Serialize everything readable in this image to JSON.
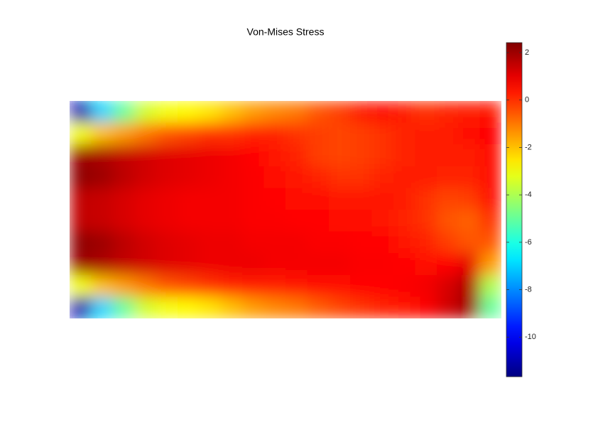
{
  "chart_data": {
    "type": "heatmap",
    "title": "Von-Mises Stress",
    "colormap": "jet",
    "values": [
      [
        -11,
        -7,
        -5,
        -3.5,
        -3,
        -2.8,
        -2.5,
        -2,
        -1.5,
        -1.2,
        -1,
        -0.5,
        -0.2,
        0.3,
        0.5,
        0.3,
        0,
        0.2,
        0.3,
        0.4
      ],
      [
        -3,
        -2,
        -1.5,
        -1,
        -0.5,
        -0.3,
        0,
        0,
        0.2,
        0.2,
        0,
        -0.2,
        -0.3,
        -0.2,
        0,
        0.2,
        0.3,
        0.3,
        0.5,
        0.6
      ],
      [
        2.0,
        1.8,
        1.5,
        1.3,
        1.1,
        1.0,
        0.9,
        0.8,
        0.6,
        0.4,
        0.2,
        -0.2,
        -0.3,
        -0.2,
        0,
        0.2,
        0.3,
        0.3,
        0.3,
        0.5
      ],
      [
        2.2,
        2.0,
        1.6,
        1.3,
        1.1,
        1.0,
        0.9,
        0.8,
        0.7,
        0.5,
        0.4,
        0.2,
        0,
        0,
        0.2,
        0.3,
        0.3,
        0.2,
        0.2,
        0.5
      ],
      [
        1.5,
        1.4,
        1.2,
        1.0,
        0.9,
        0.8,
        0.8,
        0.8,
        0.7,
        0.6,
        0.5,
        0.5,
        0.4,
        0.4,
        0.4,
        0.3,
        0,
        -0.3,
        -0.2,
        0.5
      ],
      [
        1.5,
        1.4,
        1.2,
        1.0,
        0.9,
        0.8,
        0.8,
        0.8,
        0.7,
        0.7,
        0.6,
        0.6,
        0.5,
        0.5,
        0.4,
        0.2,
        0,
        -0.5,
        -0.7,
        0
      ],
      [
        2.2,
        2.0,
        1.6,
        1.3,
        1.1,
        1.0,
        0.9,
        0.9,
        0.8,
        0.8,
        0.8,
        0.7,
        0.7,
        0.6,
        0.6,
        0.4,
        0.2,
        -0.2,
        -0.5,
        -0.5
      ],
      [
        2.0,
        1.8,
        1.5,
        1.3,
        1.1,
        1.0,
        0.9,
        0.9,
        0.9,
        0.8,
        0.8,
        0.8,
        0.8,
        0.7,
        0.7,
        0.6,
        0.5,
        0.6,
        1.0,
        -1.5
      ],
      [
        -3,
        -2,
        -1.5,
        -1,
        -0.5,
        -0.3,
        0,
        0.2,
        0.3,
        0.3,
        0.4,
        0.5,
        0.5,
        0.6,
        0.6,
        0.7,
        0.8,
        1.2,
        1.8,
        -4
      ],
      [
        -11,
        -7,
        -5,
        -3.5,
        -3,
        -2.8,
        -2.5,
        -2,
        -1.5,
        -1.2,
        -1,
        -0.6,
        -0.3,
        0,
        0.2,
        0.4,
        0.7,
        1.3,
        2.0,
        -5
      ]
    ],
    "clim": [
      -11.67,
      2.42
    ],
    "cticks": [
      2,
      0,
      -2,
      -4,
      -6,
      -8,
      -10
    ]
  }
}
